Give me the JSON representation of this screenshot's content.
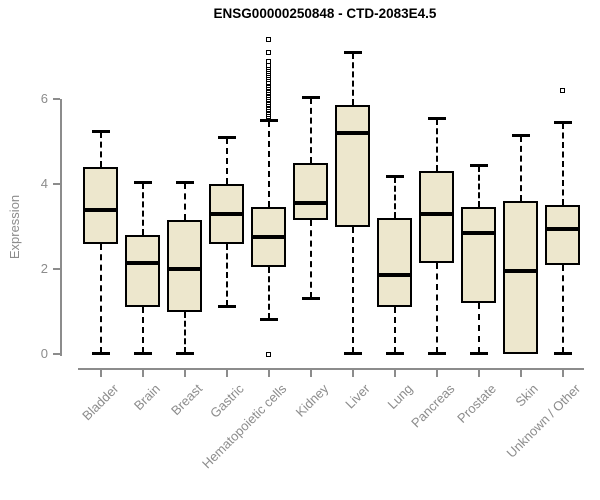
{
  "chart_data": {
    "type": "boxplot",
    "title": "ENSG00000250848 - CTD-2083E4.5",
    "xlabel": "",
    "ylabel": "Expression",
    "ylim": [
      0,
      7.5
    ],
    "yticks": [
      "0",
      "2",
      "4",
      "6"
    ],
    "grid": false,
    "legend": "none",
    "categories": [
      "Bladder",
      "Brain",
      "Breast",
      "Gastric",
      "Hematopoietic cells",
      "Kidney",
      "Liver",
      "Lung",
      "Pancreas",
      "Prostate",
      "Skin",
      "Unknown / Other"
    ],
    "boxes": [
      {
        "category": "Bladder",
        "whisker_low": 0,
        "q1": 2.6,
        "median": 3.4,
        "q3": 4.4,
        "whisker_high": 5.25,
        "outliers": []
      },
      {
        "category": "Brain",
        "whisker_low": 0,
        "q1": 1.1,
        "median": 2.15,
        "q3": 2.8,
        "whisker_high": 4.05,
        "outliers": []
      },
      {
        "category": "Breast",
        "whisker_low": 0,
        "q1": 1.0,
        "median": 2.0,
        "q3": 3.15,
        "whisker_high": 4.05,
        "outliers": []
      },
      {
        "category": "Gastric",
        "whisker_low": 1.1,
        "q1": 2.6,
        "median": 3.3,
        "q3": 4.0,
        "whisker_high": 5.1,
        "outliers": []
      },
      {
        "category": "Hematopoietic cells",
        "whisker_low": 0.8,
        "q1": 2.05,
        "median": 2.75,
        "q3": 3.45,
        "whisker_high": 5.5,
        "outliers": [
          0,
          5.6,
          5.64,
          5.68,
          5.72,
          5.76,
          5.8,
          5.84,
          5.88,
          5.92,
          5.96,
          6.0,
          6.04,
          6.08,
          6.12,
          6.16,
          6.2,
          6.24,
          6.28,
          6.32,
          6.36,
          6.4,
          6.45,
          6.5,
          6.55,
          6.6,
          6.65,
          6.7,
          6.75,
          6.8,
          6.88,
          7.1,
          7.4
        ]
      },
      {
        "category": "Kidney",
        "whisker_low": 1.3,
        "q1": 3.15,
        "median": 3.55,
        "q3": 4.5,
        "whisker_high": 6.05,
        "outliers": []
      },
      {
        "category": "Liver",
        "whisker_low": 0,
        "q1": 3.0,
        "median": 5.2,
        "q3": 5.85,
        "whisker_high": 7.1,
        "outliers": []
      },
      {
        "category": "Lung",
        "whisker_low": 0,
        "q1": 1.1,
        "median": 1.85,
        "q3": 3.2,
        "whisker_high": 4.2,
        "outliers": []
      },
      {
        "category": "Pancreas",
        "whisker_low": 0,
        "q1": 2.15,
        "median": 3.3,
        "q3": 4.3,
        "whisker_high": 5.55,
        "outliers": []
      },
      {
        "category": "Prostate",
        "whisker_low": 0,
        "q1": 1.2,
        "median": 2.85,
        "q3": 3.45,
        "whisker_high": 4.45,
        "outliers": []
      },
      {
        "category": "Skin",
        "whisker_low": 0,
        "q1": 0,
        "median": 1.95,
        "q3": 3.6,
        "whisker_high": 5.15,
        "outliers": []
      },
      {
        "category": "Unknown / Other",
        "whisker_low": 0,
        "q1": 2.1,
        "median": 2.95,
        "q3": 3.5,
        "whisker_high": 5.45,
        "outliers": [
          6.2
        ]
      }
    ],
    "colors": {
      "box_fill": "#EDE7CD",
      "box_border": "#000000",
      "median": "#000000",
      "whisker": "#000000",
      "axis": "#8C8C8C",
      "tick_text": "#8C8C8C",
      "title_text": "#000000",
      "background": "#FFFFFF"
    }
  }
}
